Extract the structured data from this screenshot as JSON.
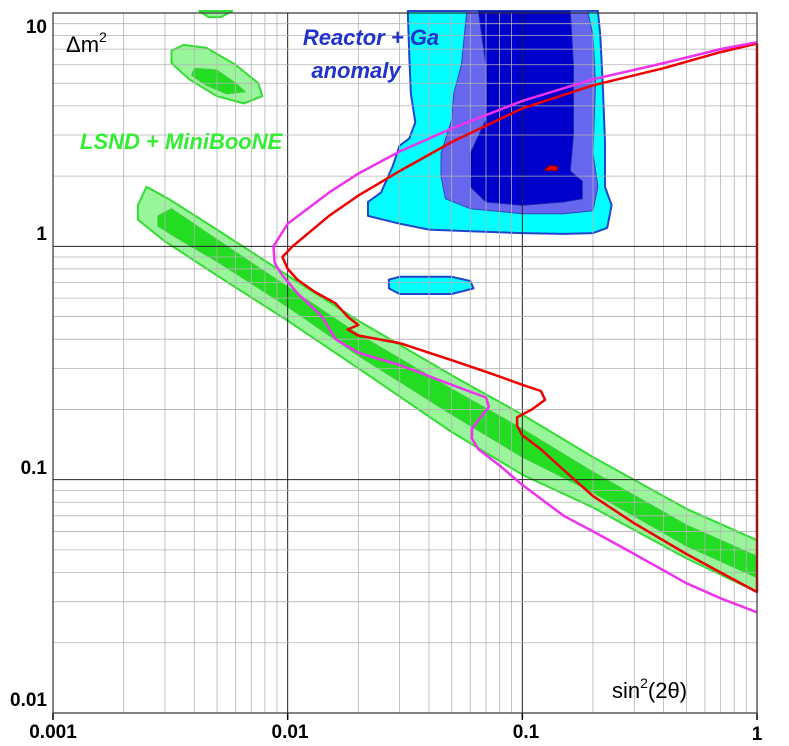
{
  "chart_data": {
    "type": "contour",
    "x_scale": "log",
    "y_scale": "log",
    "xlim": [
      0.001,
      1
    ],
    "ylim": [
      0.01,
      10
    ],
    "xlabel_base": "sin",
    "xlabel_sup": "2",
    "xlabel_rest": "(2θ)",
    "ylabel_base": "Δm",
    "ylabel_sup": "2",
    "x_tick_labels": [
      "0.001",
      "0.01",
      "0.1",
      "1"
    ],
    "y_tick_labels": [
      "0.01",
      "0.1",
      "1",
      "10"
    ],
    "grid": true,
    "colors": {
      "lsnd_outer": "#99f59a",
      "lsnd_inner": "#22dd22",
      "lsnd_edge": "#33dd33",
      "reactor_outer": "#00ffff",
      "reactor_mid": "#6666ee",
      "reactor_inner": "#0000cc",
      "reactor_edge": "#2244cc",
      "red_curve": "#ee0000",
      "magenta_curve": "#ee33ee",
      "lsnd_label": "#33ee33",
      "reactor_label": "#2233cc"
    },
    "annotations": [
      {
        "text": "Reactor + Ga",
        "color": "reactor_label"
      },
      {
        "text": "anomaly",
        "color": "reactor_label"
      },
      {
        "text": "LSND + MiniBooNE",
        "color": "lsnd_label"
      }
    ],
    "regions": [
      {
        "group": "lsnd_band",
        "fill": "lsnd_outer",
        "points": [
          [
            0.0023,
            1.5
          ],
          [
            0.0025,
            1.8
          ],
          [
            0.0031,
            1.6
          ],
          [
            0.005,
            1.18
          ],
          [
            0.01,
            0.75
          ],
          [
            0.02,
            0.48
          ],
          [
            0.05,
            0.28
          ],
          [
            0.1,
            0.19
          ],
          [
            0.2,
            0.125
          ],
          [
            0.5,
            0.075
          ],
          [
            1,
            0.055
          ],
          [
            1,
            0.033
          ],
          [
            0.5,
            0.046
          ],
          [
            0.2,
            0.076
          ],
          [
            0.1,
            0.105
          ],
          [
            0.05,
            0.16
          ],
          [
            0.02,
            0.3
          ],
          [
            0.01,
            0.48
          ],
          [
            0.005,
            0.75
          ],
          [
            0.003,
            1.05
          ],
          [
            0.0023,
            1.3
          ]
        ]
      },
      {
        "group": "lsnd_band",
        "fill": "lsnd_inner",
        "points": [
          [
            0.0028,
            1.35
          ],
          [
            0.0032,
            1.45
          ],
          [
            0.005,
            1.07
          ],
          [
            0.01,
            0.67
          ],
          [
            0.02,
            0.42
          ],
          [
            0.05,
            0.245
          ],
          [
            0.1,
            0.165
          ],
          [
            0.2,
            0.108
          ],
          [
            0.5,
            0.064
          ],
          [
            1,
            0.047
          ],
          [
            1,
            0.038
          ],
          [
            0.5,
            0.052
          ],
          [
            0.2,
            0.088
          ],
          [
            0.1,
            0.125
          ],
          [
            0.05,
            0.19
          ],
          [
            0.02,
            0.34
          ],
          [
            0.01,
            0.55
          ],
          [
            0.005,
            0.86
          ],
          [
            0.0033,
            1.1
          ],
          [
            0.0028,
            1.22
          ]
        ]
      },
      {
        "group": "lsnd_island",
        "fill": "lsnd_outer",
        "points": [
          [
            0.0032,
            6.9
          ],
          [
            0.0036,
            7.3
          ],
          [
            0.0045,
            7.1
          ],
          [
            0.006,
            6.0
          ],
          [
            0.0075,
            5.0
          ],
          [
            0.0078,
            4.4
          ],
          [
            0.0065,
            4.1
          ],
          [
            0.005,
            4.4
          ],
          [
            0.0038,
            5.2
          ],
          [
            0.0032,
            6.1
          ]
        ]
      },
      {
        "group": "lsnd_island",
        "fill": "lsnd_inner",
        "points": [
          [
            0.004,
            5.8
          ],
          [
            0.005,
            5.7
          ],
          [
            0.006,
            5.0
          ],
          [
            0.0066,
            4.6
          ],
          [
            0.0055,
            4.5
          ],
          [
            0.0045,
            4.9
          ],
          [
            0.0039,
            5.4
          ]
        ]
      },
      {
        "group": "lsnd_top",
        "fill": "lsnd_outer",
        "points": [
          [
            0.0042,
            10.2
          ],
          [
            0.0046,
            9.6
          ],
          [
            0.0052,
            9.6
          ],
          [
            0.0058,
            10.2
          ]
        ]
      },
      {
        "group": "reactor",
        "fill": "reactor_outer",
        "points": [
          [
            0.0325,
            10.2
          ],
          [
            0.033,
            6.5
          ],
          [
            0.0335,
            4.5
          ],
          [
            0.035,
            3.4
          ],
          [
            0.033,
            2.9
          ],
          [
            0.03,
            2.7
          ],
          [
            0.028,
            2.2
          ],
          [
            0.025,
            1.7
          ],
          [
            0.022,
            1.55
          ],
          [
            0.022,
            1.35
          ],
          [
            0.03,
            1.25
          ],
          [
            0.04,
            1.18
          ],
          [
            0.06,
            1.16
          ],
          [
            0.1,
            1.14
          ],
          [
            0.15,
            1.13
          ],
          [
            0.2,
            1.14
          ],
          [
            0.23,
            1.2
          ],
          [
            0.24,
            1.5
          ],
          [
            0.225,
            1.8
          ],
          [
            0.225,
            2.8
          ],
          [
            0.22,
            5
          ],
          [
            0.215,
            8
          ],
          [
            0.21,
            10.2
          ]
        ]
      },
      {
        "group": "reactor",
        "fill": "reactor_mid",
        "points": [
          [
            0.058,
            10.2
          ],
          [
            0.055,
            6
          ],
          [
            0.051,
            4.5
          ],
          [
            0.05,
            3.5
          ],
          [
            0.045,
            2.5
          ],
          [
            0.045,
            2
          ],
          [
            0.047,
            1.6
          ],
          [
            0.06,
            1.45
          ],
          [
            0.1,
            1.38
          ],
          [
            0.15,
            1.38
          ],
          [
            0.2,
            1.42
          ],
          [
            0.21,
            1.8
          ],
          [
            0.2,
            2.5
          ],
          [
            0.205,
            5
          ],
          [
            0.2,
            8
          ],
          [
            0.19,
            10.2
          ]
        ]
      },
      {
        "group": "reactor",
        "fill": "reactor_inner",
        "points": [
          [
            0.065,
            10.2
          ],
          [
            0.07,
            6
          ],
          [
            0.07,
            3.5
          ],
          [
            0.06,
            2.5
          ],
          [
            0.06,
            1.8
          ],
          [
            0.07,
            1.55
          ],
          [
            0.1,
            1.5
          ],
          [
            0.15,
            1.55
          ],
          [
            0.18,
            1.6
          ],
          [
            0.18,
            1.9
          ],
          [
            0.16,
            2.1
          ],
          [
            0.165,
            3
          ],
          [
            0.165,
            6
          ],
          [
            0.16,
            10.2
          ]
        ]
      },
      {
        "group": "reactor_island",
        "fill": "reactor_outer",
        "points": [
          [
            0.027,
            0.72
          ],
          [
            0.03,
            0.74
          ],
          [
            0.05,
            0.74
          ],
          [
            0.06,
            0.71
          ],
          [
            0.062,
            0.66
          ],
          [
            0.05,
            0.625
          ],
          [
            0.03,
            0.625
          ],
          [
            0.027,
            0.66
          ]
        ]
      },
      {
        "group": "reactor_spot",
        "fill": "red_curve",
        "points": [
          [
            0.124,
            2.12
          ],
          [
            0.13,
            2.22
          ],
          [
            0.142,
            2.2
          ],
          [
            0.14,
            2.11
          ]
        ]
      }
    ],
    "curves": [
      {
        "group": "exclusion",
        "color": "red_curve",
        "points": [
          [
            1,
            7.4
          ],
          [
            0.7,
            6.8
          ],
          [
            0.4,
            5.8
          ],
          [
            0.2,
            4.9
          ],
          [
            0.1,
            3.9
          ],
          [
            0.05,
            2.8
          ],
          [
            0.03,
            2.1
          ],
          [
            0.02,
            1.65
          ],
          [
            0.015,
            1.35
          ],
          [
            0.0105,
            1.0
          ],
          [
            0.0095,
            0.9
          ],
          [
            0.01,
            0.8
          ],
          [
            0.011,
            0.72
          ],
          [
            0.013,
            0.64
          ],
          [
            0.016,
            0.57
          ],
          [
            0.018,
            0.5
          ],
          [
            0.02,
            0.46
          ],
          [
            0.018,
            0.44
          ],
          [
            0.02,
            0.415
          ],
          [
            0.03,
            0.385
          ],
          [
            0.05,
            0.325
          ],
          [
            0.07,
            0.29
          ],
          [
            0.09,
            0.265
          ],
          [
            0.1,
            0.255
          ],
          [
            0.12,
            0.24
          ],
          [
            0.125,
            0.22
          ],
          [
            0.11,
            0.2
          ],
          [
            0.095,
            0.185
          ],
          [
            0.095,
            0.17
          ],
          [
            0.1,
            0.155
          ],
          [
            0.12,
            0.135
          ],
          [
            0.15,
            0.11
          ],
          [
            0.2,
            0.085
          ],
          [
            0.3,
            0.065
          ],
          [
            0.5,
            0.048
          ],
          [
            0.7,
            0.04
          ],
          [
            1,
            0.033
          ],
          [
            1,
            7.4
          ]
        ]
      },
      {
        "group": "exclusion",
        "color": "magenta_curve",
        "points": [
          [
            1,
            7.5
          ],
          [
            0.7,
            7.0
          ],
          [
            0.4,
            6.1
          ],
          [
            0.2,
            5.2
          ],
          [
            0.1,
            4.2
          ],
          [
            0.05,
            3.2
          ],
          [
            0.03,
            2.55
          ],
          [
            0.02,
            2.05
          ],
          [
            0.015,
            1.7
          ],
          [
            0.01,
            1.25
          ],
          [
            0.0087,
            1.0
          ],
          [
            0.0088,
            0.85
          ],
          [
            0.0095,
            0.75
          ],
          [
            0.011,
            0.63
          ],
          [
            0.014,
            0.5
          ],
          [
            0.016,
            0.4
          ],
          [
            0.02,
            0.35
          ],
          [
            0.03,
            0.31
          ],
          [
            0.05,
            0.255
          ],
          [
            0.07,
            0.225
          ],
          [
            0.072,
            0.205
          ],
          [
            0.065,
            0.18
          ],
          [
            0.061,
            0.165
          ],
          [
            0.061,
            0.15
          ],
          [
            0.065,
            0.135
          ],
          [
            0.08,
            0.115
          ],
          [
            0.1,
            0.095
          ],
          [
            0.15,
            0.07
          ],
          [
            0.2,
            0.06
          ],
          [
            0.3,
            0.048
          ],
          [
            0.5,
            0.036
          ],
          [
            0.7,
            0.031
          ],
          [
            1,
            0.027
          ]
        ]
      }
    ]
  }
}
